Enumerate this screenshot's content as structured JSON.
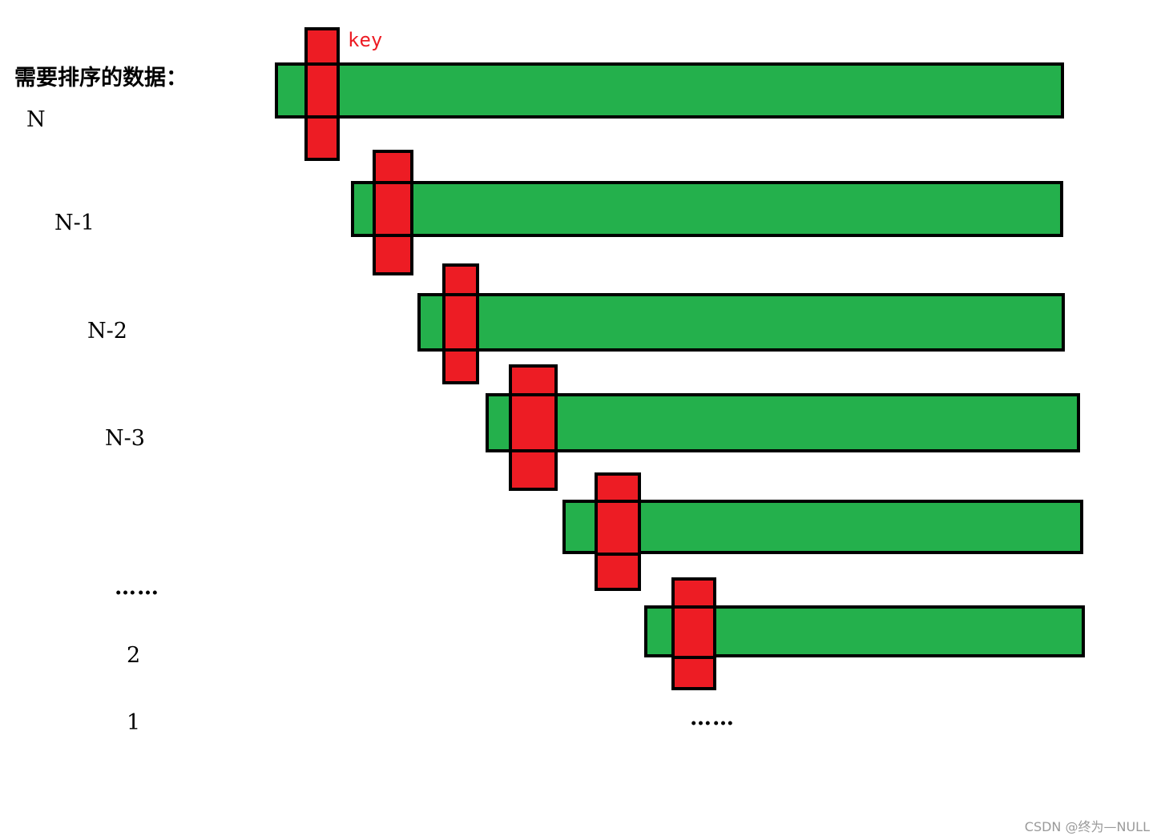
{
  "title": "需要排序的数据：",
  "levels": [
    "N",
    "N-1",
    "N-2",
    "N-3",
    "……",
    "2",
    "1"
  ],
  "key_label": "key",
  "trailing_ellipsis": "……",
  "watermark": "CSDN @终为—NULL",
  "colors": {
    "bar_fill": "#24b04c",
    "key_fill": "#ed1c24",
    "key_label": "#ed1c24",
    "outline": "#000000"
  }
}
